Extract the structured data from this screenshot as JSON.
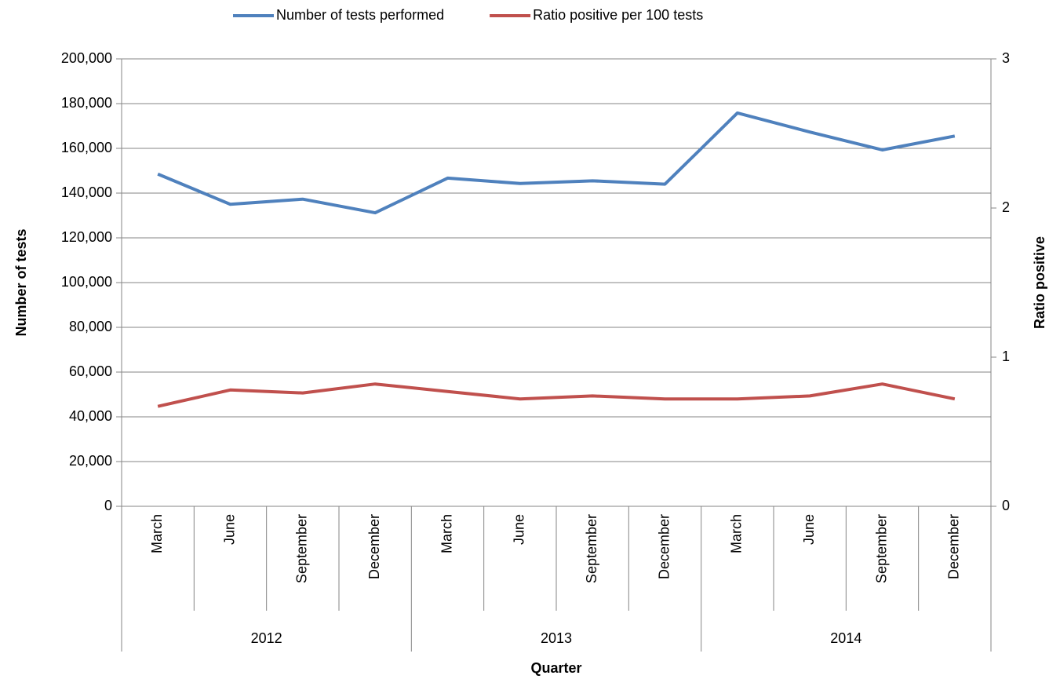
{
  "chart_data": {
    "type": "line",
    "x_label": "Quarter",
    "y_label": "Number of tests",
    "y2_label": "Ratio positive",
    "categories": [
      "March",
      "June",
      "September",
      "December",
      "March",
      "June",
      "September",
      "December",
      "March",
      "June",
      "September",
      "December"
    ],
    "category_groups": [
      "2012",
      "2013",
      "2014"
    ],
    "series": [
      {
        "name": "Number of tests performed",
        "color": "#4f81bd",
        "values": [
          148500,
          135000,
          137300,
          131200,
          146700,
          144300,
          145500,
          144000,
          175800,
          167300,
          159300,
          165500
        ]
      },
      {
        "name": "Ratio positive per 100 tests",
        "color": "#c0504d",
        "axis": "y2",
        "values": [
          0.67,
          0.78,
          0.76,
          0.82,
          0.77,
          0.72,
          0.74,
          0.72,
          0.72,
          0.74,
          0.82,
          0.72
        ]
      }
    ],
    "ylim": [
      0,
      200000
    ],
    "yticks": [
      0,
      {
        "value": 20000,
        "label": "20,000"
      },
      {
        "value": 40000,
        "label": "40,000"
      },
      {
        "value": 60000,
        "label": "60,000"
      },
      {
        "value": 80000,
        "label": "80,000"
      },
      {
        "value": 100000,
        "label": "100,000"
      },
      {
        "value": 120000,
        "label": "120,000"
      },
      {
        "value": 140000,
        "label": "140,000"
      },
      {
        "value": 160000,
        "label": "160,000"
      },
      {
        "value": 180000,
        "label": "180,000"
      },
      {
        "value": 200000,
        "label": "200,000"
      }
    ],
    "y2lim": [
      0,
      3
    ],
    "y2ticks": [
      0,
      1,
      2,
      3
    ],
    "grid": true,
    "legend": "top"
  }
}
